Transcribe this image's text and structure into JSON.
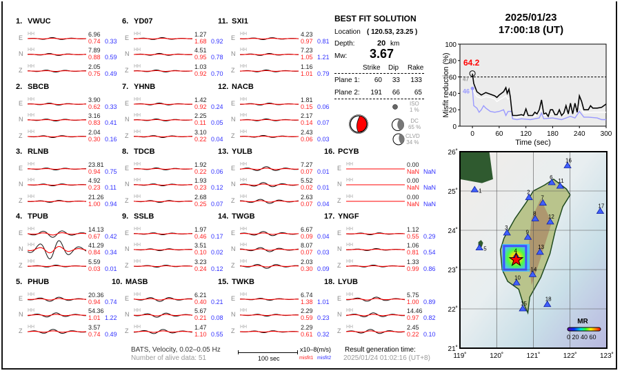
{
  "stations": [
    {
      "num": "1.",
      "name": "VWUC",
      "channel": "HH",
      "comps": [
        {
          "c": "E",
          "amp": "6.96",
          "m1": "0.74",
          "m2": "0.33"
        },
        {
          "c": "N",
          "amp": "7.89",
          "m1": "0.88",
          "m2": "0.59"
        },
        {
          "c": "Z",
          "amp": "2.05",
          "m1": "0.75",
          "m2": "0.49"
        }
      ]
    },
    {
      "num": "2.",
      "name": "SBCB",
      "channel": "HH",
      "comps": [
        {
          "c": "E",
          "amp": "3.90",
          "m1": "0.62",
          "m2": "0.33"
        },
        {
          "c": "N",
          "amp": "3.16",
          "m1": "0.83",
          "m2": "0.41"
        },
        {
          "c": "Z",
          "amp": "2.04",
          "m1": "0.30",
          "m2": "0.16"
        }
      ]
    },
    {
      "num": "3.",
      "name": "RLNB",
      "channel": "HH",
      "comps": [
        {
          "c": "E",
          "amp": "23.81",
          "m1": "0.94",
          "m2": "0.75"
        },
        {
          "c": "N",
          "amp": "4.92",
          "m1": "0.23",
          "m2": "0.11"
        },
        {
          "c": "Z",
          "amp": "21.26",
          "m1": "1.00",
          "m2": "0.94"
        }
      ]
    },
    {
      "num": "4.",
      "name": "TPUB",
      "channel": "HH",
      "comps": [
        {
          "c": "E",
          "amp": "14.13",
          "m1": "0.67",
          "m2": "0.42"
        },
        {
          "c": "N",
          "amp": "41.29",
          "m1": "0.84",
          "m2": "0.34"
        },
        {
          "c": "Z",
          "amp": "5.59",
          "m1": "0.03",
          "m2": "0.01"
        }
      ]
    },
    {
      "num": "5.",
      "name": "PHUB",
      "channel": "HH",
      "comps": [
        {
          "c": "E",
          "amp": "20.36",
          "m1": "0.94",
          "m2": "0.74"
        },
        {
          "c": "N",
          "amp": "54.36",
          "m1": "1.01",
          "m2": "1.22"
        },
        {
          "c": "Z",
          "amp": "3.57",
          "m1": "0.74",
          "m2": "0.49"
        }
      ]
    },
    {
      "num": "6.",
      "name": "YD07",
      "channel": "HH",
      "comps": [
        {
          "c": "E",
          "amp": "1.27",
          "m1": "1.68",
          "m2": "0.92"
        },
        {
          "c": "N",
          "amp": "4.51",
          "m1": "0.95",
          "m2": "0.78"
        },
        {
          "c": "Z",
          "amp": "1.03",
          "m1": "0.92",
          "m2": "0.70"
        }
      ]
    },
    {
      "num": "7.",
      "name": "YHNB",
      "channel": "HH",
      "comps": [
        {
          "c": "E",
          "amp": "1.42",
          "m1": "0.92",
          "m2": "0.24"
        },
        {
          "c": "N",
          "amp": "2.25",
          "m1": "0.11",
          "m2": "0.05"
        },
        {
          "c": "Z",
          "amp": "3.10",
          "m1": "0.22",
          "m2": "0.04"
        }
      ]
    },
    {
      "num": "8.",
      "name": "TDCB",
      "channel": "HH",
      "comps": [
        {
          "c": "E",
          "amp": "1.92",
          "m1": "0.22",
          "m2": "0.06"
        },
        {
          "c": "N",
          "amp": "1.93",
          "m1": "0.23",
          "m2": "0.12"
        },
        {
          "c": "Z",
          "amp": "2.68",
          "m1": "0.25",
          "m2": "0.07"
        }
      ]
    },
    {
      "num": "9.",
      "name": "SSLB",
      "channel": "HH",
      "comps": [
        {
          "c": "E",
          "amp": "1.97",
          "m1": "0.46",
          "m2": "0.17"
        },
        {
          "c": "N",
          "amp": "3.51",
          "m1": "0.10",
          "m2": "0.02"
        },
        {
          "c": "Z",
          "amp": "3.23",
          "m1": "0.24",
          "m2": "0.12"
        }
      ]
    },
    {
      "num": "10.",
      "name": "MASB",
      "channel": "HH",
      "comps": [
        {
          "c": "E",
          "amp": "6.21",
          "m1": "0.40",
          "m2": "0.21"
        },
        {
          "c": "N",
          "amp": "5.67",
          "m1": "0.21",
          "m2": "0.08"
        },
        {
          "c": "Z",
          "amp": "1.47",
          "m1": "1.10",
          "m2": "0.55"
        }
      ]
    },
    {
      "num": "11.",
      "name": "SXI1",
      "channel": "HH",
      "comps": [
        {
          "c": "E",
          "amp": "4.23",
          "m1": "0.97",
          "m2": "0.81"
        },
        {
          "c": "N",
          "amp": "7.23",
          "m1": "1.05",
          "m2": "1.21"
        },
        {
          "c": "Z",
          "amp": "1.16",
          "m1": "1.01",
          "m2": "0.79"
        }
      ]
    },
    {
      "num": "12.",
      "name": "NACB",
      "channel": "HH",
      "comps": [
        {
          "c": "E",
          "amp": "1.81",
          "m1": "0.15",
          "m2": "0.06"
        },
        {
          "c": "N",
          "amp": "2.17",
          "m1": "0.14",
          "m2": "0.07"
        },
        {
          "c": "Z",
          "amp": "2.43",
          "m1": "0.06",
          "m2": "0.03"
        }
      ]
    },
    {
      "num": "13.",
      "name": "YULB",
      "channel": "HH",
      "comps": [
        {
          "c": "E",
          "amp": "7.27",
          "m1": "0.07",
          "m2": "0.01"
        },
        {
          "c": "N",
          "amp": "5.52",
          "m1": "0.02",
          "m2": "0.01"
        },
        {
          "c": "Z",
          "amp": "2.63",
          "m1": "0.07",
          "m2": "0.04"
        }
      ]
    },
    {
      "num": "14.",
      "name": "TWGB",
      "channel": "HH",
      "comps": [
        {
          "c": "E",
          "amp": "6.67",
          "m1": "0.09",
          "m2": "0.04"
        },
        {
          "c": "N",
          "amp": "8.07",
          "m1": "0.07",
          "m2": "0.03"
        },
        {
          "c": "Z",
          "amp": "2.03",
          "m1": "0.30",
          "m2": "0.09"
        }
      ]
    },
    {
      "num": "15.",
      "name": "TWKB",
      "channel": "HH",
      "comps": [
        {
          "c": "E",
          "amp": "6.74",
          "m1": "1.38",
          "m2": "1.01"
        },
        {
          "c": "N",
          "amp": "2.29",
          "m1": "0.59",
          "m2": "0.23"
        },
        {
          "c": "Z",
          "amp": "2.29",
          "m1": "0.61",
          "m2": "0.32"
        }
      ]
    },
    {
      "num": "16.",
      "name": "PCYB",
      "channel": "HH",
      "comps": [
        {
          "c": "E",
          "amp": "0.00",
          "m1": "NaN",
          "m2": "NaN"
        },
        {
          "c": "N",
          "amp": "0.00",
          "m1": "NaN",
          "m2": "NaN"
        },
        {
          "c": "Z",
          "amp": "0.00",
          "m1": "NaN",
          "m2": "NaN"
        }
      ]
    },
    {
      "num": "17.",
      "name": "YNGF",
      "channel": "HH",
      "comps": [
        {
          "c": "E",
          "amp": "1.12",
          "m1": "0.55",
          "m2": "0.29"
        },
        {
          "c": "N",
          "amp": "1.06",
          "m1": "0.81",
          "m2": "0.54"
        },
        {
          "c": "Z",
          "amp": "1.33",
          "m1": "0.99",
          "m2": "0.86"
        }
      ]
    },
    {
      "num": "18.",
      "name": "LYUB",
      "channel": "HH",
      "comps": [
        {
          "c": "E",
          "amp": "5.75",
          "m1": "1.00",
          "m2": "0.89"
        },
        {
          "c": "N",
          "amp": "14.46",
          "m1": "0.97",
          "m2": "0.82"
        },
        {
          "c": "Z",
          "amp": "2.45",
          "m1": "0.22",
          "m2": "0.10"
        }
      ]
    }
  ],
  "best_fit": {
    "title": "BEST FIT SOLUTION",
    "location_label": "Location",
    "location_value": "( 120.53,  23.25 )",
    "depth_label": "Depth:",
    "depth_value": "20",
    "depth_unit": "km",
    "mw_label": "Mw:",
    "mw_value": "3.67",
    "headers": [
      "Strike",
      "Dip",
      "Rake"
    ],
    "planes": [
      {
        "label": "Plane 1:",
        "values": [
          "60",
          "33",
          "133"
        ]
      },
      {
        "label": "Plane 2:",
        "values": [
          "191",
          "66",
          "65"
        ]
      }
    ],
    "components": [
      {
        "label": "ISO",
        "pct": "1  %"
      },
      {
        "label": "DC",
        "pct": "65 %"
      },
      {
        "label": "CLVD",
        "pct": "34 %"
      }
    ]
  },
  "footer": {
    "network": "BATS, Velocity, 0.02–0.05 Hz",
    "alive": "Number of alive data: 51",
    "scale": "100 sec",
    "units": "x10–8(m/s)",
    "misfit1": "misfit1",
    "misfit2": "misfit2",
    "gen_label": "Result generation time:",
    "gen_time": "2025/01/24 01:02:16 (UT+8)"
  },
  "header": {
    "date": "2025/01/23",
    "time": "17:00:18  (UT)"
  },
  "chart_data": {
    "type": "line",
    "xlabel": "Time (sec)",
    "ylabel": "Misfit reduction (%)",
    "xlim": [
      -28,
      300
    ],
    "ylim": [
      0,
      100
    ],
    "xticks": [
      0,
      60,
      120,
      180,
      240,
      300
    ],
    "yticks": [
      0,
      20,
      40,
      60,
      80,
      100
    ],
    "threshold": 60,
    "best_value": "64.2",
    "white_start": "47",
    "blue_start": "46",
    "colors": {
      "black": "#000000",
      "white": "#ffffff",
      "blue": "#9999ff",
      "best": "#ff0000",
      "background": "#ececec"
    },
    "series": [
      {
        "color": "black",
        "x": [
          0,
          3,
          10,
          20,
          30,
          40,
          50,
          55,
          60,
          70,
          75,
          78,
          82,
          85,
          88,
          90,
          100,
          110,
          115,
          120,
          125,
          135,
          140,
          145,
          150,
          155,
          160,
          165,
          170,
          175,
          180,
          185,
          190,
          195,
          200,
          205,
          210,
          215,
          220,
          225,
          230,
          235,
          240,
          245,
          250,
          260,
          265,
          270,
          280,
          290,
          300
        ],
        "y": [
          64,
          52,
          42,
          38,
          41,
          39,
          37,
          35,
          38,
          42,
          47,
          40,
          45,
          36,
          20,
          13,
          13,
          14,
          13,
          21,
          13,
          13,
          17,
          15,
          20,
          32,
          15,
          16,
          12,
          20,
          20,
          14,
          14,
          20,
          13,
          16,
          25,
          15,
          28,
          15,
          28,
          17,
          37,
          30,
          20,
          20,
          25,
          22,
          22,
          23,
          27
        ]
      },
      {
        "color": "white",
        "x": [
          0,
          3,
          10,
          20,
          30,
          40,
          50,
          55,
          60,
          70,
          75,
          80,
          85,
          88,
          90,
          100,
          120,
          140,
          155,
          160,
          180,
          200,
          220,
          240,
          250,
          270,
          300
        ],
        "y": [
          47,
          42,
          36,
          34,
          36,
          35,
          33,
          30,
          32,
          35,
          37,
          33,
          35,
          18,
          12,
          11,
          13,
          12,
          20,
          13,
          15,
          13,
          18,
          24,
          16,
          17,
          17
        ]
      },
      {
        "color": "blue",
        "x": [
          0,
          3,
          10,
          15,
          20,
          25,
          30,
          40,
          50,
          60,
          70,
          75,
          80,
          88,
          90,
          100,
          110,
          130,
          150,
          155,
          160,
          180,
          200,
          220,
          230,
          240,
          250,
          260,
          280,
          290,
          300
        ],
        "y": [
          46,
          25,
          22,
          17,
          20,
          25,
          22,
          18,
          17,
          18,
          20,
          13,
          18,
          18,
          9,
          8,
          9,
          8,
          10,
          16,
          9,
          10,
          8,
          12,
          10,
          18,
          11,
          11,
          10,
          8,
          8
        ]
      }
    ]
  },
  "map": {
    "lon_ticks": [
      "119˚",
      "120˚",
      "121˚",
      "122˚",
      "123˚"
    ],
    "lat_ticks": [
      "21˚",
      "22˚",
      "23˚",
      "24˚",
      "25˚",
      "26˚"
    ],
    "colorbar_title": "MR",
    "colorbar_ticks": "0 20 40 60",
    "epicenter": {
      "lon": 120.53,
      "lat": 23.25
    },
    "stations": [
      {
        "id": "1",
        "lon": 119.4,
        "lat": 25.03
      },
      {
        "id": "2",
        "lon": 120.88,
        "lat": 24.83
      },
      {
        "id": "3",
        "lon": 120.28,
        "lat": 23.93
      },
      {
        "id": "4",
        "lon": 120.53,
        "lat": 23.34
      },
      {
        "id": "5",
        "lon": 119.53,
        "lat": 23.55
      },
      {
        "id": "6",
        "lon": 121.5,
        "lat": 25.21
      },
      {
        "id": "7",
        "lon": 121.26,
        "lat": 24.69
      },
      {
        "id": "8",
        "lon": 121.05,
        "lat": 24.29
      },
      {
        "id": "9",
        "lon": 120.85,
        "lat": 23.82
      },
      {
        "id": "10",
        "lon": 120.54,
        "lat": 22.66
      },
      {
        "id": "11",
        "lon": 121.73,
        "lat": 25.12
      },
      {
        "id": "12",
        "lon": 121.46,
        "lat": 24.21
      },
      {
        "id": "13",
        "lon": 121.18,
        "lat": 23.44
      },
      {
        "id": "14",
        "lon": 120.98,
        "lat": 22.87
      },
      {
        "id": "15",
        "lon": 120.71,
        "lat": 22.0
      },
      {
        "id": "16",
        "lon": 121.93,
        "lat": 25.64
      },
      {
        "id": "17",
        "lon": 122.82,
        "lat": 24.48
      },
      {
        "id": "18",
        "lon": 121.38,
        "lat": 22.11
      }
    ]
  }
}
